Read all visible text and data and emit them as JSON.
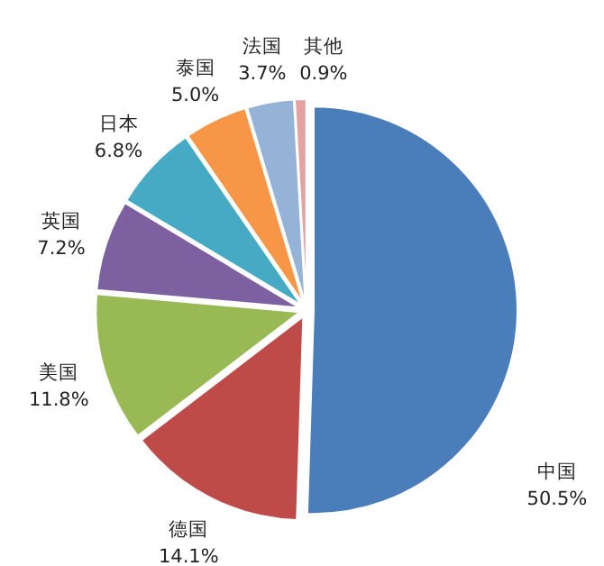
{
  "chart_data": {
    "type": "pie",
    "categories": [
      "中国",
      "德国",
      "美国",
      "英国",
      "日本",
      "泰国",
      "法国",
      "其他"
    ],
    "values": [
      50.5,
      14.1,
      11.8,
      7.2,
      6.8,
      5.0,
      3.7,
      0.9
    ],
    "colors": [
      "#4a7ebb",
      "#be4b48",
      "#98b954",
      "#7d60a0",
      "#46aac5",
      "#f79646",
      "#95b3d7",
      "#e6a2a0"
    ],
    "value_labels": [
      "50.5%",
      "14.1%",
      "11.8%",
      "7.2%",
      "6.8%",
      "5.0%",
      "3.7%",
      "0.9%"
    ]
  }
}
